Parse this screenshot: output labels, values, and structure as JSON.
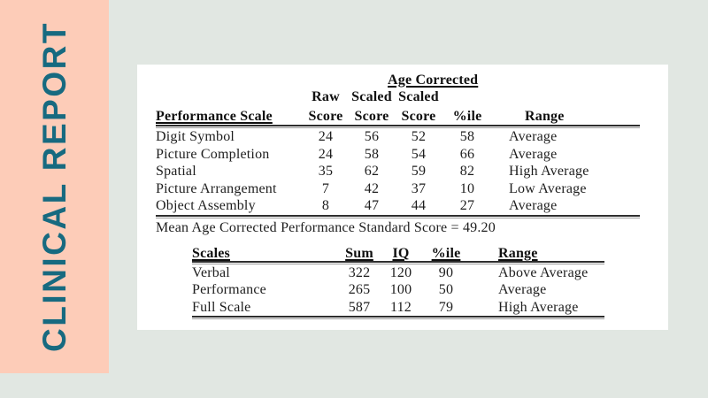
{
  "theme": {
    "page_bg": "#e1e7e2",
    "banner_bg": "#fdccb8",
    "banner_text_color": "#176a80",
    "panel_bg": "#ffffff",
    "table_text_color": "#1e1e1e"
  },
  "sidebar": {
    "title": "CLINICAL REPORT"
  },
  "report": {
    "table1": {
      "headers": {
        "age_corrected": "Age Corrected",
        "scale": "Performance Scale",
        "raw1": "Raw",
        "raw2": "Score",
        "scaled1": "Scaled",
        "scaled2": "Score",
        "ac_scaled1": "Scaled",
        "ac_scaled2": "Score",
        "pctile": "%ile",
        "range": "Range"
      },
      "rows": [
        {
          "scale": "Digit Symbol",
          "raw": "24",
          "scaled": "56",
          "ac_scaled": "52",
          "pctile": "58",
          "range": "Average"
        },
        {
          "scale": "Picture Completion",
          "raw": "24",
          "scaled": "58",
          "ac_scaled": "54",
          "pctile": "66",
          "range": "Average"
        },
        {
          "scale": "Spatial",
          "raw": "35",
          "scaled": "62",
          "ac_scaled": "59",
          "pctile": "82",
          "range": "High Average"
        },
        {
          "scale": "Picture Arrangement",
          "raw": "7",
          "scaled": "42",
          "ac_scaled": "37",
          "pctile": "10",
          "range": "Low Average"
        },
        {
          "scale": "Object Assembly",
          "raw": "8",
          "scaled": "47",
          "ac_scaled": "44",
          "pctile": "27",
          "range": "Average"
        }
      ],
      "footer": "Mean Age Corrected Performance Standard Score = 49.20"
    },
    "table2": {
      "headers": {
        "scales": "Scales",
        "sum": "Sum",
        "iq": "IQ",
        "pctile": "%ile",
        "range": "Range"
      },
      "rows": [
        {
          "scales": "Verbal",
          "sum": "322",
          "iq": "120",
          "pctile": "90",
          "range": "Above Average"
        },
        {
          "scales": "Performance",
          "sum": "265",
          "iq": "100",
          "pctile": "50",
          "range": "Average"
        },
        {
          "scales": "Full Scale",
          "sum": "587",
          "iq": "112",
          "pctile": "79",
          "range": "High Average"
        }
      ]
    }
  }
}
